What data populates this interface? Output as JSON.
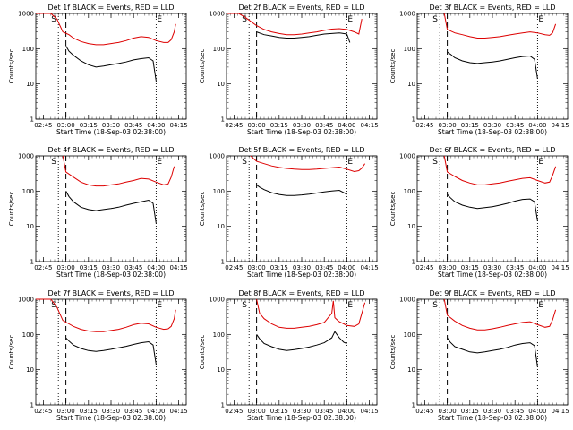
{
  "figure": {
    "series_names": [
      "Events",
      "LLD"
    ],
    "series_colors": {
      "Events": "#000000",
      "LLD": "#dd0000"
    },
    "marker_S": "S",
    "marker_E": "E"
  },
  "chart_data": [
    {
      "type": "line",
      "title": "Det 1f BLACK = Events, RED = LLD",
      "xlabel": "Start Time (18-Sep-03 02:38:00)",
      "ylabel": "Counts/sec",
      "yscale": "log",
      "ylim": [
        1,
        1000
      ],
      "yticks": [
        "1",
        "10",
        "100",
        "1000"
      ],
      "xlim_min": [
        0,
        100
      ],
      "xticks_min": [
        5,
        20,
        35,
        50,
        65,
        80,
        95
      ],
      "xticklabels": [
        "02:45",
        "03:00",
        "03:15",
        "03:30",
        "03:45",
        "04:00",
        "04:15"
      ],
      "vlines_dotted_min": [
        15,
        80
      ],
      "vline_dashed_min": 20,
      "series": [
        {
          "name": "Events",
          "x": [
            20,
            22,
            25,
            30,
            35,
            40,
            45,
            50,
            55,
            60,
            65,
            70,
            75,
            78,
            80
          ],
          "y": [
            120,
            85,
            65,
            45,
            35,
            30,
            32,
            35,
            38,
            42,
            48,
            52,
            55,
            45,
            12
          ]
        },
        {
          "name": "LLD",
          "x": [
            0,
            10,
            14,
            18,
            22,
            25,
            30,
            35,
            40,
            45,
            50,
            55,
            60,
            65,
            70,
            75,
            80,
            85,
            88,
            90,
            92,
            93
          ],
          "y": [
            1000,
            1000,
            700,
            300,
            250,
            200,
            160,
            140,
            130,
            130,
            140,
            150,
            170,
            200,
            220,
            210,
            170,
            150,
            150,
            180,
            300,
            500
          ]
        }
      ]
    },
    {
      "type": "line",
      "title": "Det 2f BLACK = Events, RED = LLD",
      "xlabel": "Start Time (18-Sep-03 02:38:00)",
      "ylabel": "Counts/sec",
      "yscale": "log",
      "ylim": [
        1,
        1000
      ],
      "yticks": [
        "1",
        "10",
        "100",
        "1000"
      ],
      "xlim_min": [
        0,
        100
      ],
      "xticks_min": [
        5,
        20,
        35,
        50,
        65,
        80,
        95
      ],
      "xticklabels": [
        "02:45",
        "03:00",
        "03:15",
        "03:30",
        "03:45",
        "04:00",
        "04:15"
      ],
      "vlines_dotted_min": [
        15,
        80
      ],
      "vline_dashed_min": 20,
      "series": [
        {
          "name": "Events",
          "x": [
            20,
            25,
            30,
            35,
            40,
            45,
            50,
            55,
            60,
            65,
            70,
            75,
            80,
            82
          ],
          "y": [
            300,
            250,
            230,
            210,
            200,
            200,
            210,
            220,
            240,
            260,
            270,
            280,
            260,
            150
          ]
        },
        {
          "name": "LLD",
          "x": [
            0,
            8,
            12,
            16,
            20,
            25,
            30,
            35,
            40,
            45,
            50,
            55,
            60,
            65,
            70,
            75,
            80,
            85,
            88,
            90
          ],
          "y": [
            1000,
            1000,
            800,
            600,
            450,
            350,
            300,
            270,
            250,
            250,
            260,
            280,
            300,
            330,
            360,
            370,
            350,
            300,
            260,
            700
          ]
        }
      ]
    },
    {
      "type": "line",
      "title": "Det 3f BLACK = Events, RED = LLD",
      "xlabel": "Start Time (18-Sep-03 02:38:00)",
      "ylabel": "Counts/sec",
      "yscale": "log",
      "ylim": [
        1,
        1000
      ],
      "yticks": [
        "1",
        "10",
        "100",
        "1000"
      ],
      "xlim_min": [
        0,
        100
      ],
      "xticks_min": [
        5,
        20,
        35,
        50,
        65,
        80,
        95
      ],
      "xticklabels": [
        "02:45",
        "03:00",
        "03:15",
        "03:30",
        "03:45",
        "04:00",
        "04:15"
      ],
      "vlines_dotted_min": [
        15,
        80
      ],
      "vline_dashed_min": 20,
      "series": [
        {
          "name": "Events",
          "x": [
            20,
            22,
            25,
            30,
            35,
            40,
            45,
            50,
            55,
            60,
            65,
            70,
            75,
            78,
            80
          ],
          "y": [
            80,
            70,
            55,
            45,
            40,
            38,
            40,
            42,
            45,
            50,
            55,
            60,
            62,
            50,
            14
          ]
        },
        {
          "name": "LLD",
          "x": [
            18,
            20,
            25,
            30,
            35,
            40,
            45,
            50,
            55,
            60,
            65,
            70,
            75,
            80,
            85,
            88,
            90,
            92
          ],
          "y": [
            1000,
            350,
            280,
            250,
            220,
            200,
            200,
            210,
            220,
            240,
            260,
            280,
            300,
            280,
            250,
            240,
            280,
            500
          ]
        }
      ]
    },
    {
      "type": "line",
      "title": "Det 4f BLACK = Events, RED = LLD",
      "xlabel": "Start Time (18-Sep-03 02:38:00)",
      "ylabel": "Counts/sec",
      "yscale": "log",
      "ylim": [
        1,
        1000
      ],
      "yticks": [
        "1",
        "10",
        "100",
        "1000"
      ],
      "xlim_min": [
        0,
        100
      ],
      "xticks_min": [
        5,
        20,
        35,
        50,
        65,
        80,
        95
      ],
      "xticklabels": [
        "02:45",
        "03:00",
        "03:15",
        "03:30",
        "03:45",
        "04:00",
        "04:15"
      ],
      "vlines_dotted_min": [
        15,
        80
      ],
      "vline_dashed_min": 20,
      "series": [
        {
          "name": "Events",
          "x": [
            20,
            22,
            25,
            30,
            35,
            40,
            45,
            50,
            55,
            60,
            65,
            70,
            75,
            78,
            80
          ],
          "y": [
            100,
            70,
            50,
            35,
            30,
            28,
            30,
            32,
            35,
            40,
            45,
            50,
            55,
            45,
            12
          ]
        },
        {
          "name": "LLD",
          "x": [
            18,
            20,
            25,
            30,
            35,
            40,
            45,
            50,
            55,
            60,
            65,
            70,
            75,
            80,
            85,
            88,
            90,
            92
          ],
          "y": [
            1000,
            350,
            250,
            180,
            150,
            140,
            140,
            150,
            160,
            180,
            200,
            230,
            220,
            180,
            150,
            160,
            250,
            500
          ]
        }
      ]
    },
    {
      "type": "line",
      "title": "Det 5f BLACK = Events, RED = LLD",
      "xlabel": "Start Time (18-Sep-03 02:38:00)",
      "ylabel": "Counts/sec",
      "yscale": "log",
      "ylim": [
        1,
        1000
      ],
      "yticks": [
        "1",
        "10",
        "100",
        "1000"
      ],
      "xlim_min": [
        0,
        100
      ],
      "xticks_min": [
        5,
        20,
        35,
        50,
        65,
        80,
        95
      ],
      "xticklabels": [
        "02:45",
        "03:00",
        "03:15",
        "03:30",
        "03:45",
        "04:00",
        "04:15"
      ],
      "vlines_dotted_min": [
        15,
        80
      ],
      "vline_dashed_min": 20,
      "series": [
        {
          "name": "Events",
          "x": [
            20,
            22,
            25,
            30,
            35,
            40,
            45,
            50,
            55,
            60,
            65,
            70,
            75,
            78,
            80
          ],
          "y": [
            150,
            130,
            110,
            90,
            80,
            75,
            75,
            78,
            82,
            88,
            95,
            100,
            105,
            90,
            80
          ]
        },
        {
          "name": "LLD",
          "x": [
            16,
            20,
            25,
            30,
            35,
            40,
            45,
            50,
            55,
            60,
            65,
            70,
            75,
            80,
            85,
            88,
            90,
            92
          ],
          "y": [
            1000,
            700,
            600,
            520,
            470,
            440,
            420,
            410,
            410,
            420,
            440,
            460,
            480,
            420,
            360,
            380,
            450,
            600
          ]
        }
      ]
    },
    {
      "type": "line",
      "title": "Det 6f BLACK = Events, RED = LLD",
      "xlabel": "Start Time (18-Sep-03 02:38:00)",
      "ylabel": "Counts/sec",
      "yscale": "log",
      "ylim": [
        1,
        1000
      ],
      "yticks": [
        "1",
        "10",
        "100",
        "1000"
      ],
      "xlim_min": [
        0,
        100
      ],
      "xticks_min": [
        5,
        20,
        35,
        50,
        65,
        80,
        95
      ],
      "xticklabels": [
        "02:45",
        "03:00",
        "03:15",
        "03:30",
        "03:45",
        "04:00",
        "04:15"
      ],
      "vlines_dotted_min": [
        15,
        80
      ],
      "vline_dashed_min": 20,
      "series": [
        {
          "name": "Events",
          "x": [
            20,
            22,
            25,
            30,
            35,
            40,
            45,
            50,
            55,
            60,
            65,
            70,
            75,
            78,
            80
          ],
          "y": [
            80,
            65,
            50,
            40,
            35,
            32,
            34,
            36,
            40,
            45,
            52,
            58,
            60,
            50,
            14
          ]
        },
        {
          "name": "LLD",
          "x": [
            18,
            20,
            25,
            30,
            35,
            40,
            45,
            50,
            55,
            60,
            65,
            70,
            75,
            80,
            85,
            88,
            90,
            92
          ],
          "y": [
            1000,
            350,
            260,
            200,
            170,
            150,
            150,
            160,
            170,
            190,
            210,
            230,
            240,
            200,
            170,
            180,
            280,
            500
          ]
        }
      ]
    },
    {
      "type": "line",
      "title": "Det 7f BLACK = Events, RED = LLD",
      "xlabel": "Start Time (18-Sep-03 02:38:00)",
      "ylabel": "Counts/sec",
      "yscale": "log",
      "ylim": [
        1,
        1000
      ],
      "yticks": [
        "1",
        "10",
        "100",
        "1000"
      ],
      "xlim_min": [
        0,
        100
      ],
      "xticks_min": [
        5,
        20,
        35,
        50,
        65,
        80,
        95
      ],
      "xticklabels": [
        "02:45",
        "03:00",
        "03:15",
        "03:30",
        "03:45",
        "04:00",
        "04:15"
      ],
      "vlines_dotted_min": [
        15,
        80
      ],
      "vline_dashed_min": 20,
      "series": [
        {
          "name": "Events",
          "x": [
            20,
            22,
            25,
            30,
            35,
            40,
            45,
            50,
            55,
            60,
            65,
            70,
            75,
            78,
            80
          ],
          "y": [
            80,
            65,
            50,
            40,
            35,
            33,
            35,
            38,
            42,
            46,
            52,
            58,
            62,
            50,
            14
          ]
        },
        {
          "name": "LLD",
          "x": [
            0,
            10,
            14,
            18,
            22,
            25,
            30,
            35,
            40,
            45,
            50,
            55,
            60,
            65,
            70,
            75,
            80,
            85,
            88,
            90,
            92,
            93
          ],
          "y": [
            1000,
            1000,
            600,
            250,
            200,
            170,
            140,
            125,
            120,
            120,
            130,
            140,
            160,
            190,
            210,
            200,
            160,
            140,
            145,
            170,
            280,
            500
          ]
        }
      ]
    },
    {
      "type": "line",
      "title": "Det 8f BLACK = Events, RED = LLD",
      "xlabel": "Start Time (18-Sep-03 02:38:00)",
      "ylabel": "Counts/sec",
      "yscale": "log",
      "ylim": [
        1,
        1000
      ],
      "yticks": [
        "1",
        "10",
        "100",
        "1000"
      ],
      "xlim_min": [
        0,
        100
      ],
      "xticks_min": [
        5,
        20,
        35,
        50,
        65,
        80,
        95
      ],
      "xticklabels": [
        "02:45",
        "03:00",
        "03:15",
        "03:30",
        "03:45",
        "04:00",
        "04:15"
      ],
      "vlines_dotted_min": [
        15,
        80
      ],
      "vline_dashed_min": 20,
      "series": [
        {
          "name": "Events",
          "x": [
            20,
            22,
            25,
            30,
            35,
            40,
            45,
            50,
            55,
            60,
            65,
            70,
            72,
            75,
            78,
            80
          ],
          "y": [
            100,
            75,
            55,
            45,
            38,
            35,
            37,
            40,
            44,
            50,
            58,
            80,
            120,
            80,
            60,
            55
          ]
        },
        {
          "name": "LLD",
          "x": [
            20,
            22,
            25,
            30,
            35,
            40,
            45,
            50,
            55,
            60,
            65,
            70,
            71,
            72,
            74,
            75,
            78,
            80,
            85,
            88,
            90,
            92
          ],
          "y": [
            1000,
            400,
            280,
            200,
            160,
            150,
            150,
            160,
            170,
            190,
            220,
            400,
            900,
            300,
            250,
            230,
            200,
            180,
            170,
            200,
            400,
            800
          ]
        }
      ]
    },
    {
      "type": "line",
      "title": "Det 9f BLACK = Events, RED = LLD",
      "xlabel": "Start Time (18-Sep-03 02:38:00)",
      "ylabel": "Counts/sec",
      "yscale": "log",
      "ylim": [
        1,
        1000
      ],
      "yticks": [
        "1",
        "10",
        "100",
        "1000"
      ],
      "xlim_min": [
        0,
        100
      ],
      "xticks_min": [
        5,
        20,
        35,
        50,
        65,
        80,
        95
      ],
      "xticklabels": [
        "02:45",
        "03:00",
        "03:15",
        "03:30",
        "03:45",
        "04:00",
        "04:15"
      ],
      "vlines_dotted_min": [
        15,
        80
      ],
      "vline_dashed_min": 20,
      "series": [
        {
          "name": "Events",
          "x": [
            20,
            22,
            25,
            30,
            35,
            40,
            45,
            50,
            55,
            60,
            65,
            70,
            75,
            78,
            80
          ],
          "y": [
            80,
            60,
            45,
            38,
            32,
            30,
            32,
            35,
            38,
            43,
            50,
            55,
            58,
            48,
            12
          ]
        },
        {
          "name": "LLD",
          "x": [
            18,
            20,
            25,
            30,
            35,
            40,
            45,
            50,
            55,
            60,
            65,
            70,
            75,
            80,
            85,
            88,
            90,
            92
          ],
          "y": [
            1000,
            350,
            240,
            180,
            150,
            135,
            135,
            145,
            160,
            180,
            200,
            220,
            230,
            190,
            160,
            170,
            260,
            500
          ]
        }
      ]
    }
  ]
}
